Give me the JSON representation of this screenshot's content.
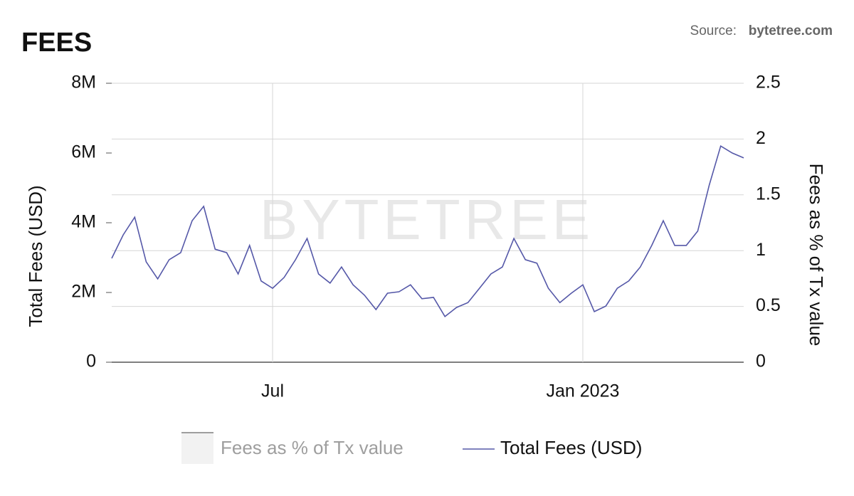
{
  "chart_data": {
    "type": "line",
    "title": "FEES",
    "source_label": "Source:",
    "source_name": "bytetree.com",
    "watermark": "BYTETREE",
    "y_label": "Total Fees (USD)",
    "y2_label": "Fees as % of Tx value",
    "categories": [
      null,
      null,
      null,
      null,
      null,
      null,
      null,
      null,
      null,
      null,
      null,
      null,
      null,
      null,
      "Jul",
      null,
      null,
      null,
      null,
      null,
      null,
      null,
      null,
      null,
      null,
      null,
      null,
      null,
      null,
      null,
      null,
      null,
      null,
      null,
      null,
      null,
      null,
      null,
      null,
      null,
      null,
      "Jan 2023",
      null,
      null,
      null,
      null,
      null,
      null,
      null,
      null,
      null,
      null,
      null,
      null,
      null,
      null
    ],
    "ylim": [
      0,
      8000000
    ],
    "yticks": [
      {
        "value": 0,
        "label": "0"
      },
      {
        "value": 2000000,
        "label": "2M"
      },
      {
        "value": 4000000,
        "label": "4M"
      },
      {
        "value": 6000000,
        "label": "6M"
      },
      {
        "value": 8000000,
        "label": "8M"
      }
    ],
    "y2lim": [
      0,
      2.5
    ],
    "y2ticks": [
      0,
      0.5,
      1,
      1.5,
      2,
      2.5
    ],
    "grid": true,
    "series": [
      {
        "name": "Fees as % of Tx value",
        "color": "#9e9e9e",
        "axis": "y2",
        "visible": false,
        "values": [
          null,
          null,
          null,
          null,
          null,
          null,
          null,
          null,
          null,
          null,
          null,
          null,
          null,
          null,
          null,
          null,
          null,
          null,
          null,
          null,
          null,
          null,
          null,
          null,
          null,
          null,
          null,
          null,
          null,
          null,
          null,
          null,
          null,
          null,
          null,
          null,
          null,
          null,
          null,
          null,
          null,
          null,
          null,
          null,
          null,
          null,
          null,
          null,
          null,
          null,
          null,
          null,
          null,
          null,
          null,
          null
        ]
      },
      {
        "name": "Total Fees (USD)",
        "color": "#5558a8",
        "axis": "y",
        "visible": true,
        "values": [
          2980000,
          3650000,
          4160000,
          2880000,
          2390000,
          2940000,
          3140000,
          4060000,
          4470000,
          3240000,
          3140000,
          2530000,
          3350000,
          2330000,
          2120000,
          2430000,
          2940000,
          3550000,
          2530000,
          2270000,
          2730000,
          2220000,
          1920000,
          1510000,
          1980000,
          2020000,
          2220000,
          1820000,
          1860000,
          1310000,
          1570000,
          1710000,
          2120000,
          2530000,
          2730000,
          3550000,
          2940000,
          2840000,
          2120000,
          1710000,
          1980000,
          2220000,
          1450000,
          1610000,
          2120000,
          2330000,
          2730000,
          3350000,
          4060000,
          3350000,
          3350000,
          3760000,
          5080000,
          6200000,
          6000000,
          5860000
        ]
      }
    ]
  }
}
